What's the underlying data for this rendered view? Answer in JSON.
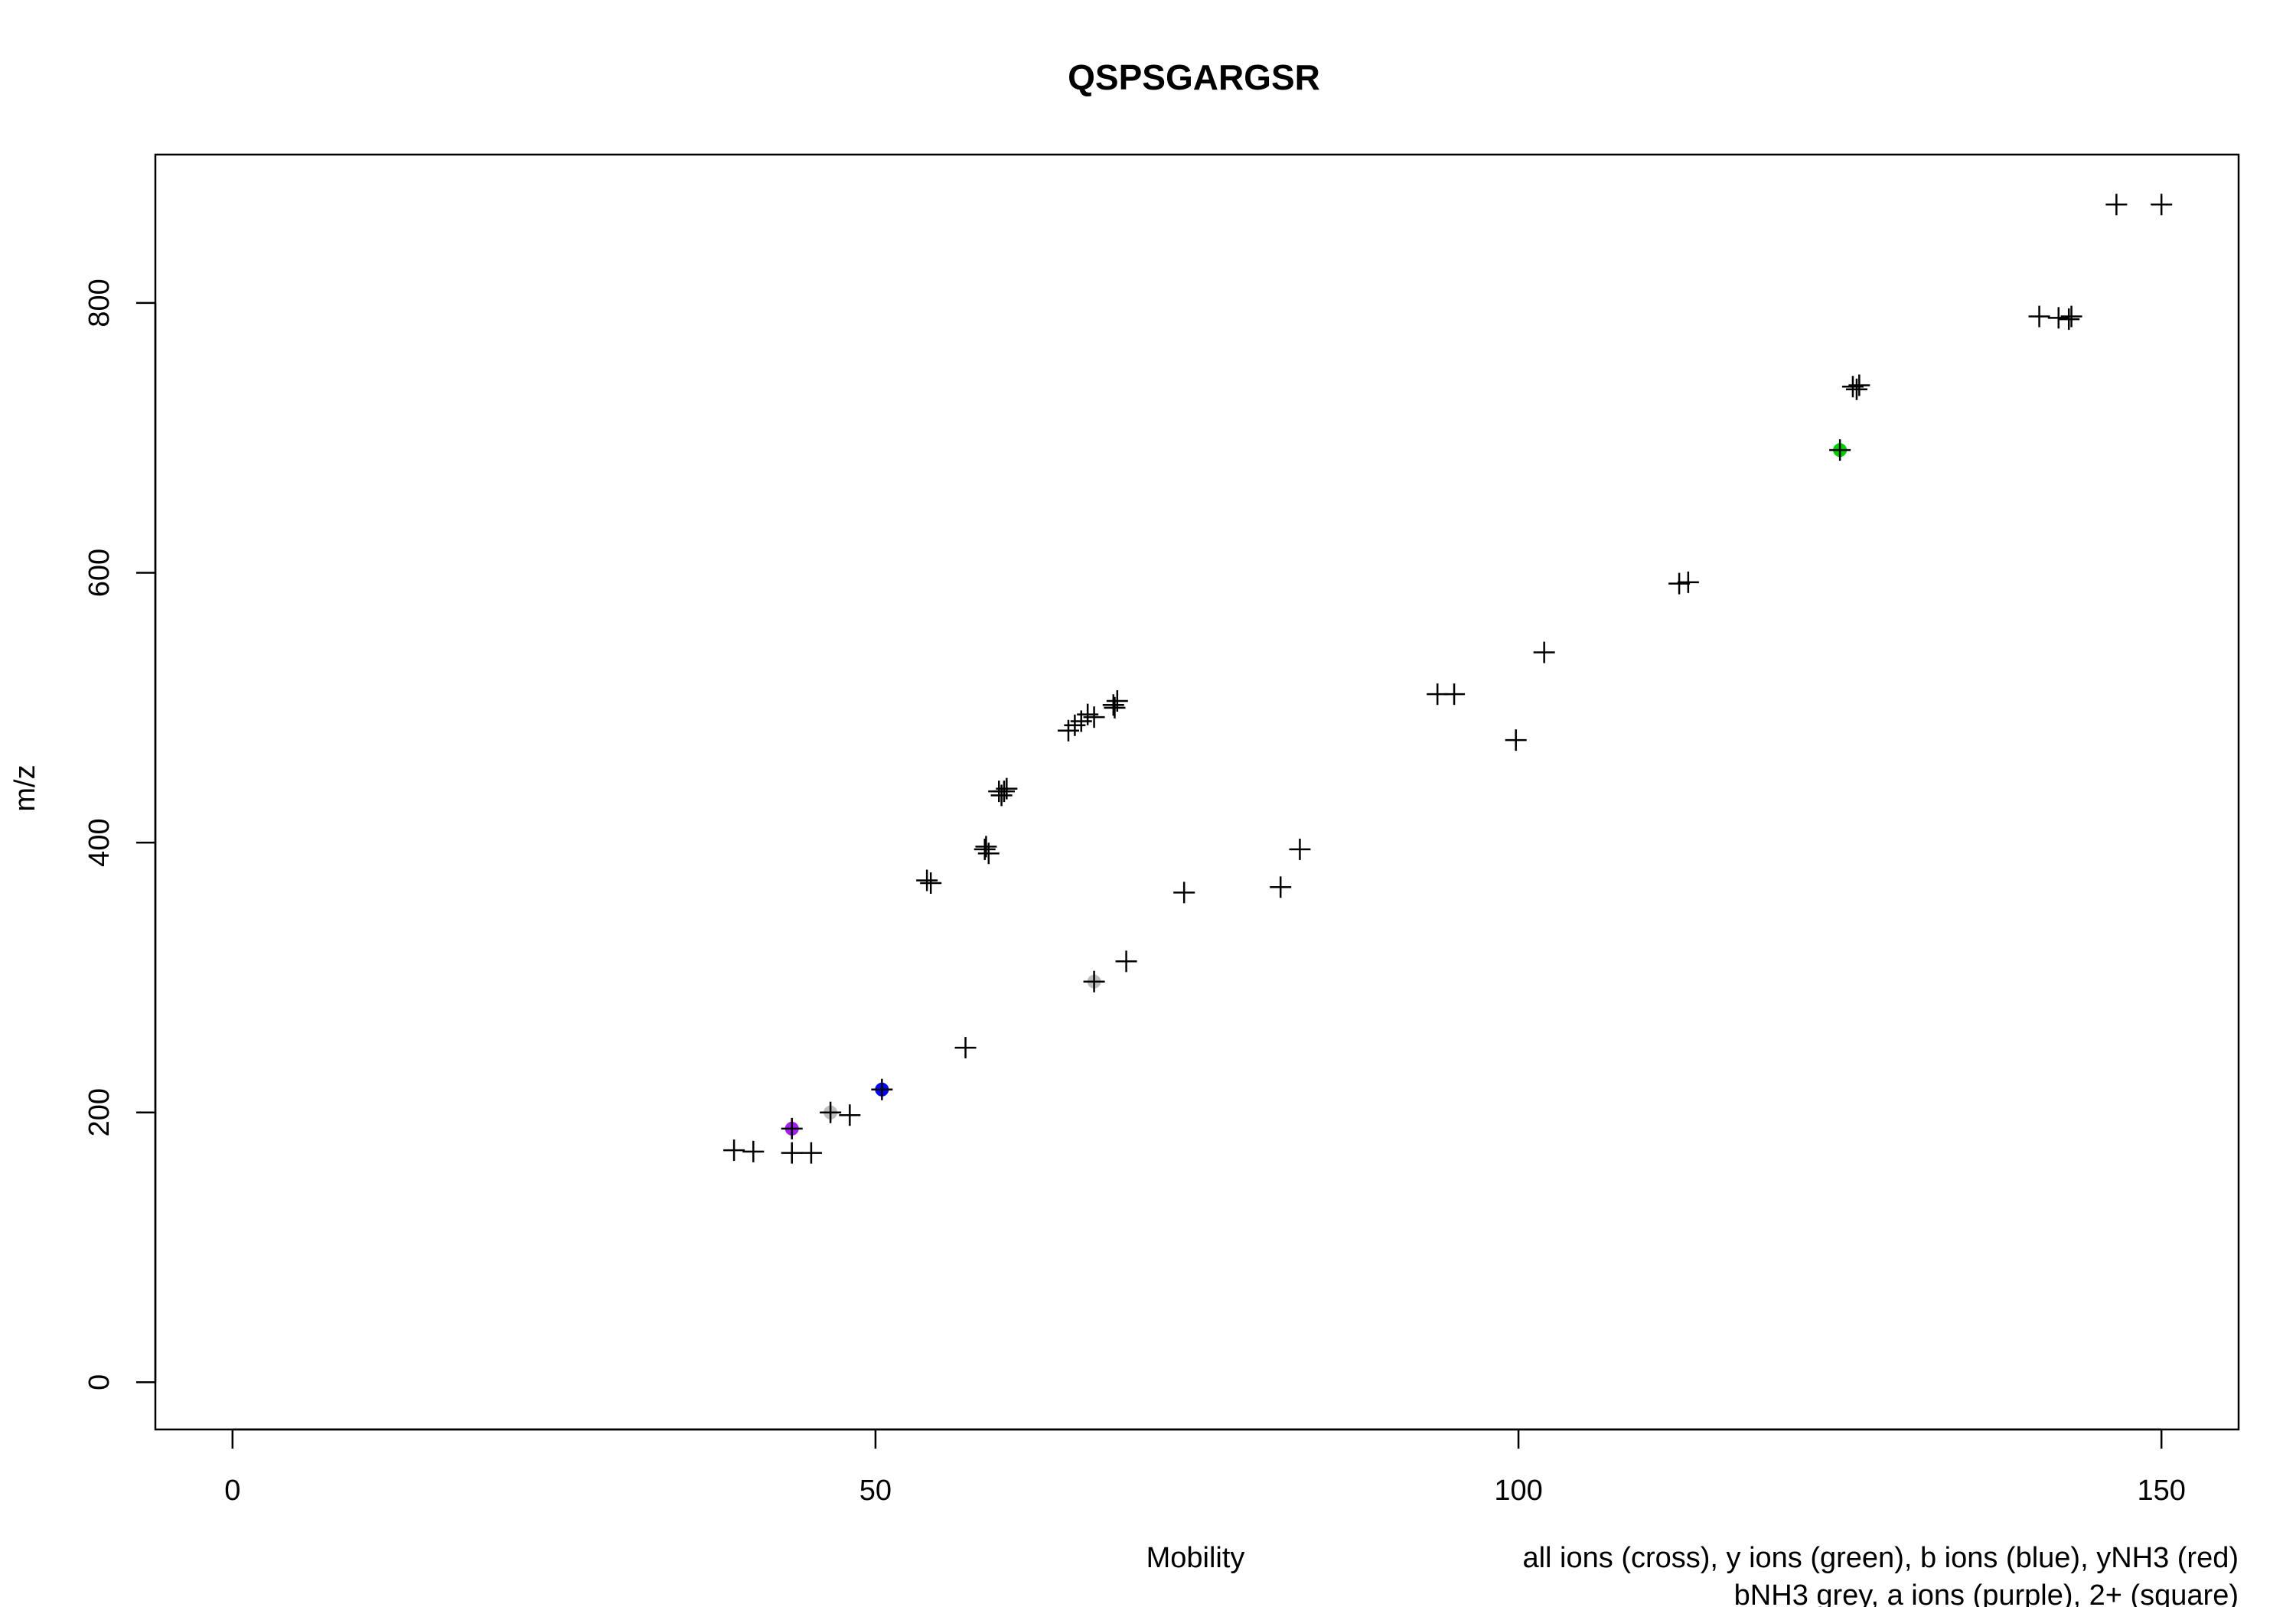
{
  "chart_data": {
    "type": "scatter",
    "title": "QSPSGARGSR",
    "xlabel": "Mobility",
    "ylabel": "m/z",
    "xlim": [
      -6,
      156
    ],
    "ylim": [
      -35,
      910
    ],
    "xticks": [
      0,
      50,
      100,
      150
    ],
    "yticks": [
      0,
      200,
      400,
      600,
      800
    ],
    "xtick_labels": [
      "0",
      "50",
      "100",
      "150"
    ],
    "ytick_labels": [
      "0",
      "200",
      "400",
      "600",
      "800"
    ],
    "grid": false,
    "legend_lines": [
      "all ions (cross), y ions (green), b ions (blue), yNH3 (red)",
      "bNH3 grey, a ions (purple), 2+ (square)"
    ],
    "marker": "cross",
    "colors": {
      "all": "#000000",
      "y": "#00cc00",
      "b": "#0000ff",
      "yNH3": "#ff0000",
      "bNH3": "#bebebe",
      "a": "#a020f0"
    },
    "series": [
      {
        "name": "all ions",
        "color": "#000000",
        "points": [
          [
            39.0,
            172
          ],
          [
            40.5,
            171
          ],
          [
            43.5,
            170
          ],
          [
            45.0,
            170
          ],
          [
            43.5,
            188
          ],
          [
            46.5,
            200
          ],
          [
            48.0,
            198
          ],
          [
            50.5,
            217
          ],
          [
            54.0,
            372
          ],
          [
            54.3,
            370
          ],
          [
            58.5,
            395
          ],
          [
            58.8,
            392
          ],
          [
            58.6,
            397
          ],
          [
            59.6,
            438
          ],
          [
            60.0,
            438
          ],
          [
            59.8,
            435
          ],
          [
            60.2,
            440
          ],
          [
            57.0,
            248
          ],
          [
            65.0,
            483
          ],
          [
            65.5,
            487
          ],
          [
            66.0,
            490
          ],
          [
            66.5,
            495
          ],
          [
            67.0,
            493
          ],
          [
            68.5,
            502
          ],
          [
            68.8,
            505
          ],
          [
            68.6,
            500
          ],
          [
            67.0,
            297
          ],
          [
            69.5,
            312
          ],
          [
            74.0,
            363
          ],
          [
            81.5,
            367
          ],
          [
            83.0,
            395
          ],
          [
            93.7,
            510
          ],
          [
            95.0,
            510
          ],
          [
            99.8,
            476
          ],
          [
            102.0,
            541
          ],
          [
            112.5,
            592
          ],
          [
            113.2,
            593
          ],
          [
            125.0,
            691
          ],
          [
            126.0,
            738
          ],
          [
            126.5,
            739
          ],
          [
            126.3,
            736
          ],
          [
            140.5,
            790
          ],
          [
            142.0,
            789
          ],
          [
            142.8,
            788
          ],
          [
            143.0,
            790
          ],
          [
            146.5,
            873
          ],
          [
            150.0,
            873
          ]
        ]
      },
      {
        "name": "y ions",
        "color": "#00cc00",
        "points": [
          [
            125.0,
            691
          ]
        ]
      },
      {
        "name": "b ions",
        "color": "#0000ff",
        "points": [
          [
            50.5,
            217
          ]
        ]
      },
      {
        "name": "bNH3",
        "color": "#bebebe",
        "points": [
          [
            46.5,
            200
          ],
          [
            67.0,
            297
          ]
        ]
      },
      {
        "name": "a ions",
        "color": "#a020f0",
        "points": [
          [
            43.5,
            188
          ]
        ]
      }
    ]
  }
}
